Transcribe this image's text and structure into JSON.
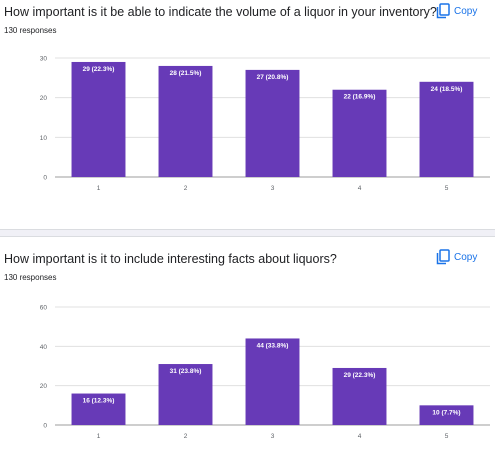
{
  "colors": {
    "bar": "#673ab7",
    "accent": "#1a73e8",
    "grid": "#e0e0e0",
    "axis": "#5f6368"
  },
  "questions": [
    {
      "title": "How important is it be able to indicate the volume of a liquor in your inventory?",
      "responses": "130 responses",
      "copy_label": "Copy",
      "copy_icon": "copy-icon"
    },
    {
      "title": "How important is it to include interesting facts about liquors?",
      "responses": "130 responses",
      "copy_label": "Copy",
      "copy_icon": "copy-icon"
    }
  ],
  "chart_data": [
    {
      "type": "bar",
      "categories": [
        "1",
        "2",
        "3",
        "4",
        "5"
      ],
      "values": [
        29,
        28,
        27,
        22,
        24
      ],
      "data_labels": [
        "29 (22.3%)",
        "28 (21.5%)",
        "27 (20.8%)",
        "22 (16.9%)",
        "24 (18.5%)"
      ],
      "ylim": [
        0,
        30
      ],
      "yticks": [
        0,
        10,
        20,
        30
      ],
      "grid": true,
      "legend": "none"
    },
    {
      "type": "bar",
      "categories": [
        "1",
        "2",
        "3",
        "4",
        "5"
      ],
      "values": [
        16,
        31,
        44,
        29,
        10
      ],
      "data_labels": [
        "16 (12.3%)",
        "31 (23.8%)",
        "44 (33.8%)",
        "29 (22.3%)",
        "10 (7.7%)"
      ],
      "ylim": [
        0,
        60
      ],
      "yticks": [
        0,
        20,
        40,
        60
      ],
      "grid": true,
      "legend": "none"
    }
  ]
}
